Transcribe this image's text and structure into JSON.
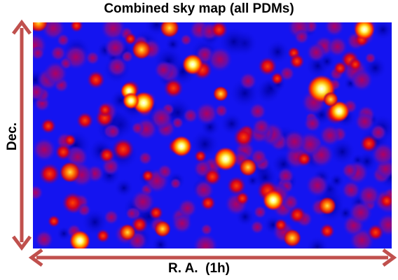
{
  "title": "Combined sky map (all PDMs)",
  "axes": {
    "vertical_label": "Dec.",
    "horizontal_label": "R. A.  (1h)"
  },
  "colors": {
    "background": "#1414f0",
    "arrow": "#c0504d",
    "hot": "#ffffff",
    "warm": "#ffd200",
    "mid": "#ff5000",
    "dim": "#cc0000"
  }
}
